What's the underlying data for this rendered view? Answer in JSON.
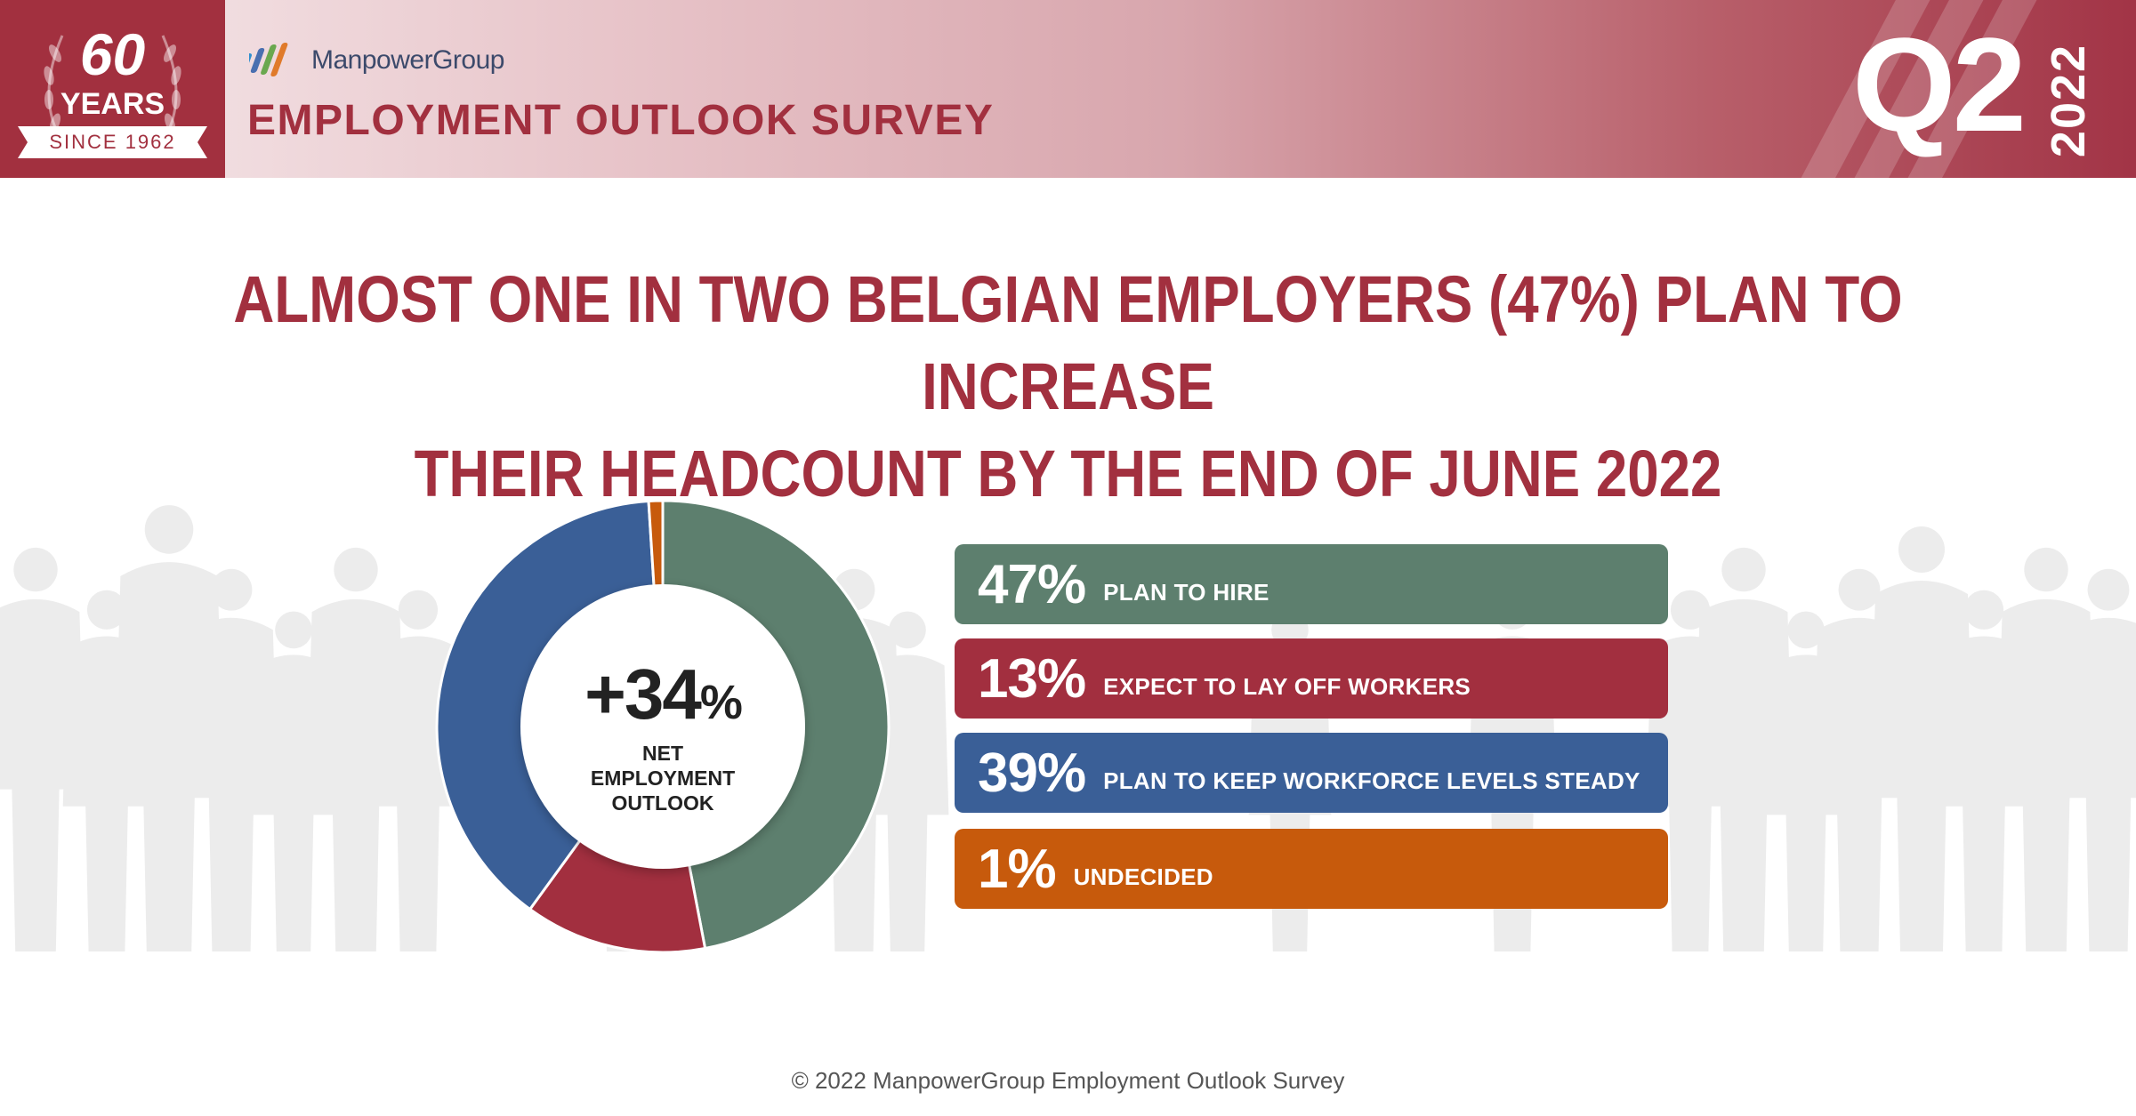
{
  "badge": {
    "number": "60",
    "word": "YEARS",
    "ribbon": "SINCE 1962"
  },
  "brand": {
    "name": "ManpowerGroup",
    "survey_title": "EMPLOYMENT OUTLOOK SURVEY"
  },
  "period": {
    "quarter": "Q2",
    "year": "2022"
  },
  "headline": {
    "line1": "ALMOST ONE IN TWO BELGIAN EMPLOYERS (47%) PLAN TO INCREASE",
    "line2": "THEIR HEADCOUNT BY THE END OF JUNE 2022"
  },
  "center": {
    "value": "+34",
    "unit": "%",
    "label_lines": [
      "NET",
      "EMPLOYMENT",
      "OUTLOOK"
    ]
  },
  "colors": {
    "hire": "#5d7f6e",
    "layoff": "#a22f3f",
    "steady": "#3a5f97",
    "undecided": "#c75a0c",
    "brand": "#a2303f"
  },
  "chart_data": {
    "type": "pie",
    "categories": [
      "PLAN TO HIRE",
      "EXPECT TO LAY OFF WORKERS",
      "PLAN TO KEEP WORKFORCE LEVELS STEADY",
      "UNDECIDED"
    ],
    "values": [
      47,
      13,
      39,
      1
    ],
    "value_labels": [
      "47%",
      "13%",
      "39%",
      "1%"
    ]
  },
  "footer": "© 2022 ManpowerGroup Employment Outlook Survey"
}
